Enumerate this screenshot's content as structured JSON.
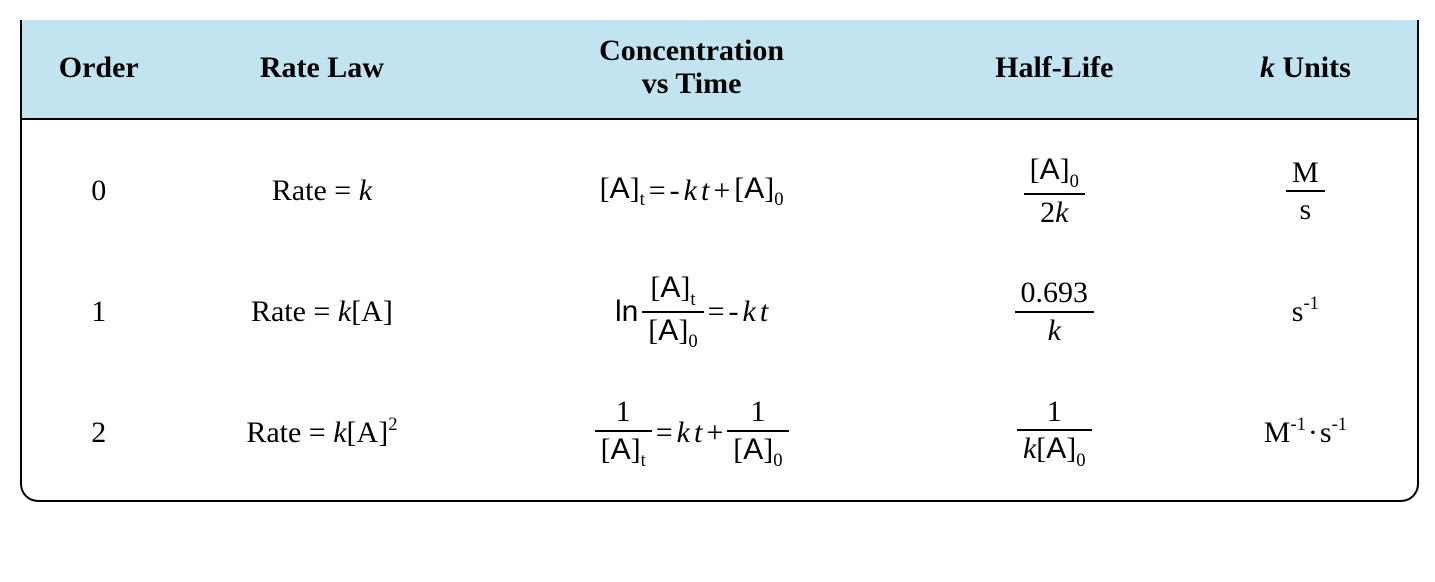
{
  "table": {
    "header_bg": "#c2e3f0",
    "border_color": "#000000",
    "font_family": "Times New Roman",
    "header_fontsize_pt": 22,
    "body_fontsize_pt": 22,
    "columns": {
      "order": {
        "label": "Order"
      },
      "rate_law": {
        "label": "Rate Law"
      },
      "conc_vs_time": {
        "label_line1": "Concentration",
        "label_line2": "vs Time"
      },
      "half_life": {
        "label": "Half-Life"
      },
      "k_units": {
        "label_prefix_italic": "k",
        "label_suffix": " Units"
      }
    },
    "rows": [
      {
        "order": "0",
        "rate_law": {
          "text": "Rate = ",
          "k_italic": "k",
          "suffix": ""
        },
        "conc_vs_time": {
          "lhs_bracket_A_sub": "t",
          "equals": " = ",
          "neg": "-",
          "k_italic": "k",
          "t_italic": "t",
          "plus": " + ",
          "rhs_bracket_A_sub": "0"
        },
        "half_life": {
          "type": "frac",
          "num_bracket_A_sub": "0",
          "den_text_pre": "2",
          "den_k_italic": "k"
        },
        "k_units": {
          "type": "frac",
          "num": "M",
          "den": "s"
        }
      },
      {
        "order": "1",
        "rate_law": {
          "text": "Rate = ",
          "k_italic": "k",
          "suffix": "[A]"
        },
        "conc_vs_time": {
          "ln": "ln",
          "frac_num_bracket_A_sub": "t",
          "frac_den_bracket_A_sub": "0",
          "equals": " = ",
          "neg": "- ",
          "k_italic": "k",
          "t_italic": "t"
        },
        "half_life": {
          "type": "frac",
          "num_text": "0.693",
          "den_k_italic": "k"
        },
        "k_units": {
          "type": "sup",
          "base": "s",
          "exp": "-1"
        }
      },
      {
        "order": "2",
        "rate_law": {
          "text": "Rate = ",
          "k_italic": "k",
          "suffix": "[A]",
          "sup": "2"
        },
        "conc_vs_time": {
          "lhs_frac_num": "1",
          "lhs_frac_den_bracket_A_sub": "t",
          "equals": " = ",
          "k_italic": "k",
          "t_italic": "t",
          "plus": " + ",
          "rhs_frac_num": "1",
          "rhs_frac_den_bracket_A_sub": "0"
        },
        "half_life": {
          "type": "frac",
          "num_text": "1",
          "den_k_italic": "k",
          "den_bracket_A_sub": "0"
        },
        "k_units": {
          "type": "compound",
          "part1_base": "M",
          "part1_exp": "-1",
          "dot": "·",
          "part2_base": "s",
          "part2_exp": "-1"
        }
      }
    ]
  }
}
